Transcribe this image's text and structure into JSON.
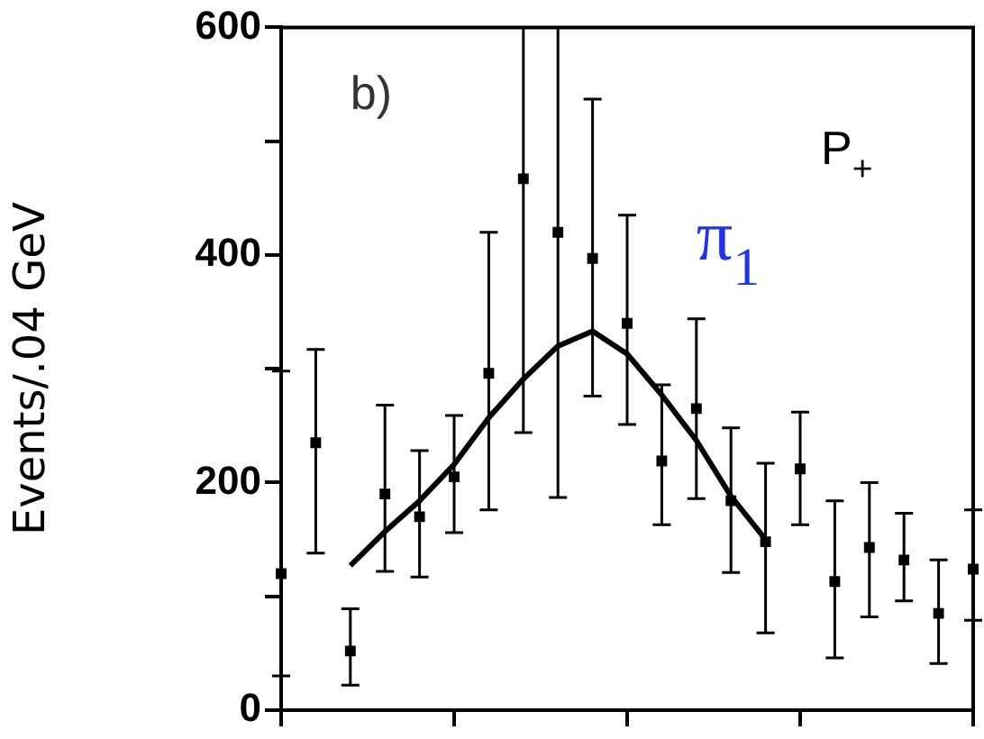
{
  "chart_data": {
    "type": "scatter",
    "ylabel": "Events/.04 GeV",
    "annotations": [
      "b)",
      "π$_{1}$",
      "P$_{+}$"
    ],
    "categories": [
      null,
      null,
      null,
      null,
      null,
      null,
      null,
      null,
      null,
      null,
      null,
      null,
      null,
      null,
      null,
      null,
      null,
      null,
      null,
      null,
      null
    ],
    "ylim": [
      0,
      600
    ],
    "yticks": [
      0,
      {
        "value": 100,
        "label": null
      },
      200,
      {
        "value": 300,
        "label": null
      },
      400,
      {
        "value": 500,
        "label": null
      },
      600
    ],
    "tick_labels": "y",
    "marker": "square",
    "series": [
      {
        "color": "#000000",
        "values": [
          120,
          235,
          52,
          190,
          170,
          205,
          296,
          467,
          420,
          397,
          340,
          219,
          265,
          184,
          148,
          212,
          113,
          143,
          132,
          85,
          124
        ],
        "errors": [
          [
            30,
            298
          ],
          [
            138,
            317
          ],
          [
            22,
            89
          ],
          [
            122,
            268
          ],
          [
            117,
            228
          ],
          [
            156,
            259
          ],
          [
            176,
            420
          ],
          [
            244,
            600
          ],
          [
            187,
            600
          ],
          [
            276,
            537
          ],
          [
            251,
            435
          ],
          [
            163,
            286
          ],
          [
            186,
            344
          ],
          [
            121,
            248
          ],
          [
            68,
            217
          ],
          [
            163,
            262
          ],
          [
            46,
            184
          ],
          [
            82,
            200
          ],
          [
            96,
            173
          ],
          [
            41,
            132
          ],
          [
            79,
            176
          ]
        ]
      },
      {
        "type": "line",
        "color": "#000000",
        "marker": "none",
        "values": [
          null,
          null,
          127,
          157,
          184,
          216,
          257,
          291,
          320,
          333,
          313,
          277,
          237,
          188,
          150,
          null,
          null,
          null,
          null,
          null,
          null
        ]
      }
    ]
  }
}
